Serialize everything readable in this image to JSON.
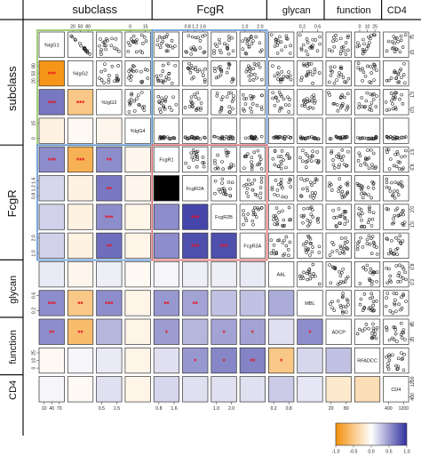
{
  "chart_data": {
    "type": "heatmap",
    "title": "",
    "groups": [
      {
        "name": "subclass",
        "members": [
          "%IgG1",
          "%IgG2",
          "%IgG3",
          "%IgG4"
        ]
      },
      {
        "name": "FcgR",
        "members": [
          "FcgR1",
          "FcgR2A",
          "FcgR2B",
          "FcgR3A"
        ]
      },
      {
        "name": "glycan",
        "members": [
          "AAL",
          "MBL"
        ]
      },
      {
        "name": "function",
        "members": [
          "ADCP",
          "RFADCC"
        ]
      },
      {
        "name": "CD4",
        "members": [
          "CD4"
        ]
      }
    ],
    "variables": [
      "%IgG1",
      "%IgG2",
      "%IgG3",
      "%IgG4",
      "FcgR1",
      "FcgR2A",
      "FcgR2B",
      "FcgR3A",
      "AAL",
      "MBL",
      "ADCP",
      "RFADCC",
      "CD4"
    ],
    "colorbar": {
      "min": -1.0,
      "max": 1.0,
      "ticks": [
        "-1.0",
        "-0.5",
        "0.0",
        "0.5",
        "1.0"
      ]
    },
    "colors": {
      "negative": "#f4900c",
      "neutral": "#ffffff",
      "positive": "#3030a0",
      "star": "#e8141e"
    },
    "lower_triangle": [
      [],
      [
        -0.95
      ],
      [
        0.65,
        -0.5
      ],
      [
        -0.12,
        -0.05,
        -0.08
      ],
      [
        0.55,
        -0.7,
        0.55,
        -0.08
      ],
      [
        0.2,
        -0.12,
        0.65,
        -0.08
      ],
      [
        0.22,
        -0.12,
        0.55,
        -0.1,
        0.55,
        0.9
      ],
      [
        0.22,
        -0.12,
        0.7,
        -0.1,
        0.55,
        0.85,
        0.85
      ],
      [
        0.1,
        -0.08,
        0.08,
        -0.05,
        0.05,
        0.08,
        0.08,
        0.1
      ],
      [
        0.55,
        -0.5,
        0.55,
        -0.1,
        0.5,
        0.45,
        0.3,
        0.3,
        0.4
      ],
      [
        0.55,
        -0.6,
        0.35,
        -0.1,
        0.48,
        0.35,
        0.45,
        0.45,
        0.15,
        0.55
      ],
      [
        -0.05,
        0.05,
        0.1,
        -0.1,
        0.15,
        0.5,
        0.58,
        0.6,
        -0.5,
        0.2,
        0.3
      ],
      [
        0.05,
        -0.05,
        0.15,
        -0.1,
        0.2,
        0.15,
        0.15,
        0.15,
        0.25,
        0.12,
        -0.2,
        -0.3
      ]
    ],
    "significance": [
      [],
      [
        "***"
      ],
      [
        "***",
        "***"
      ],
      [
        "",
        "",
        ""
      ],
      [
        "***",
        "***",
        "**",
        ""
      ],
      [
        "",
        "",
        "**",
        "",
        ""
      ],
      [
        "",
        "",
        "***",
        "",
        "",
        "***"
      ],
      [
        "",
        "",
        "**",
        "",
        "",
        "***",
        "***"
      ],
      [
        "",
        "",
        "",
        "",
        "",
        "",
        "",
        ""
      ],
      [
        "***",
        "**",
        "***",
        "",
        "**",
        "**",
        "",
        "",
        ""
      ],
      [
        "**",
        "**",
        "",
        "",
        "*",
        "",
        "*",
        "*",
        "",
        "*"
      ],
      [
        "",
        "",
        "",
        "",
        "",
        "*",
        "*",
        "**",
        "*",
        "",
        ""
      ],
      [
        "",
        "",
        "",
        "",
        "",
        "",
        "",
        "",
        "",
        "",
        "",
        ""
      ]
    ],
    "scatter_matrix": "upper triangle shows pairwise scatter plots of the same variables",
    "axis_ticks": {
      "top": [
        {
          "col": 1,
          "ticks": [
            "20",
            "50",
            "80"
          ]
        },
        {
          "col": 3,
          "ticks": [
            "0",
            "15"
          ]
        },
        {
          "col": 5,
          "ticks": [
            "0.8",
            "1.2",
            "1.6"
          ]
        },
        {
          "col": 7,
          "ticks": [
            "1.0",
            "2.0"
          ]
        },
        {
          "col": 9,
          "ticks": [
            "0.2",
            "0.6"
          ]
        },
        {
          "col": 11,
          "ticks": [
            "0",
            "10",
            "25"
          ]
        }
      ],
      "bottom": [
        {
          "col": 0,
          "ticks": [
            "10",
            "40",
            "70"
          ]
        },
        {
          "col": 2,
          "ticks": [
            "0.5",
            "1.5"
          ]
        },
        {
          "col": 4,
          "ticks": [
            "0.8",
            "1.6"
          ]
        },
        {
          "col": 6,
          "ticks": [
            "1.0",
            "2.0"
          ]
        },
        {
          "col": 8,
          "ticks": [
            "0.2",
            "0.8"
          ]
        },
        {
          "col": 10,
          "ticks": [
            "20",
            "80"
          ]
        },
        {
          "col": 12,
          "ticks": [
            "400",
            "1200"
          ]
        }
      ],
      "right": [
        {
          "row": 0,
          "ticks": [
            "10",
            "70"
          ]
        },
        {
          "row": 2,
          "ticks": [
            "0.5",
            "1.5"
          ]
        },
        {
          "row": 4,
          "ticks": [
            "0.8",
            "1.6"
          ]
        },
        {
          "row": 6,
          "ticks": [
            "1.0",
            "2.0"
          ]
        },
        {
          "row": 8,
          "ticks": [
            "0.2",
            "0.8"
          ]
        },
        {
          "row": 10,
          "ticks": [
            "20",
            "80"
          ]
        },
        {
          "row": 12,
          "ticks": [
            "400",
            "1200"
          ]
        }
      ],
      "left": [
        {
          "row": 1,
          "ticks": [
            "20",
            "50",
            "80"
          ]
        },
        {
          "row": 3,
          "ticks": [
            "0",
            "15"
          ]
        },
        {
          "row": 5,
          "ticks": [
            "0.8",
            "1.2",
            "1.6"
          ]
        },
        {
          "row": 7,
          "ticks": [
            "1.0",
            "2.0"
          ]
        },
        {
          "row": 9,
          "ticks": [
            "0.2",
            "0.6"
          ]
        },
        {
          "row": 11,
          "ticks": [
            "0",
            "10",
            "25"
          ]
        }
      ]
    },
    "highlight_boxes": [
      {
        "name": "subclass-block",
        "color": "#8dc15a"
      },
      {
        "name": "fcgr-block",
        "color": "#5b93d3"
      },
      {
        "name": "fcgr-subclass-block",
        "color": "#5b93d3"
      },
      {
        "name": "fcgr-diagonal-block",
        "color": "#e07070"
      }
    ]
  }
}
